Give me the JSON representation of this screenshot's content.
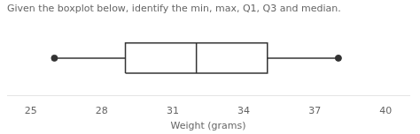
{
  "chart_data": {
    "type": "boxplot",
    "title": "Given the boxplot below, identify the min, max, Q1, Q3 and median.",
    "xlabel": "Weight (grams)",
    "min": 26,
    "q1": 29,
    "median": 32,
    "q3": 35,
    "max": 38,
    "xlim": [
      24,
      41
    ],
    "xticks": [
      25,
      28,
      31,
      34,
      37,
      40
    ],
    "grid": false,
    "color": "#333333"
  }
}
